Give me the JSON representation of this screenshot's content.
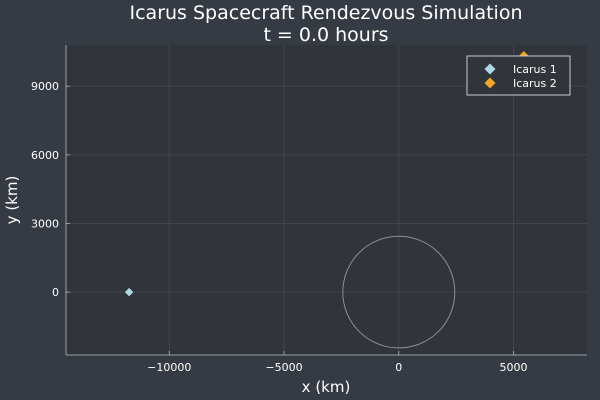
{
  "chart_data": {
    "type": "scatter",
    "title": "Icarus Spacecraft Rendezvous Simulation",
    "subtitle": "t = 0.0 hours",
    "xlabel": "x (km)",
    "ylabel": "y (km)",
    "xlim": [
      -14500,
      8200
    ],
    "ylim": [
      -2750,
      10800
    ],
    "xticks": [
      -10000,
      -5000,
      0,
      5000
    ],
    "xtick_labels": [
      "−10000",
      "−5000",
      "0",
      "5000"
    ],
    "yticks": [
      0,
      3000,
      6000,
      9000
    ],
    "ytick_labels": [
      "0",
      "3000",
      "6000",
      "9000"
    ],
    "grid": true,
    "legend_position": "top-right",
    "series": [
      {
        "name": "Icarus 1",
        "x": [
          -11750
        ],
        "y": [
          0
        ],
        "color": "#add8e6",
        "marker": "diamond"
      },
      {
        "name": "Icarus 2",
        "x": [
          5450
        ],
        "y": [
          10350
        ],
        "color": "#f5a623",
        "marker": "diamond"
      }
    ],
    "body_circle": {
      "center": [
        0,
        0
      ],
      "radius": 2440,
      "color": "#8f8f8f"
    },
    "colors": {
      "background": "#353b44",
      "plot_background": "#30343b",
      "grid": "#41464e",
      "axis": "#9a9ea5"
    }
  }
}
